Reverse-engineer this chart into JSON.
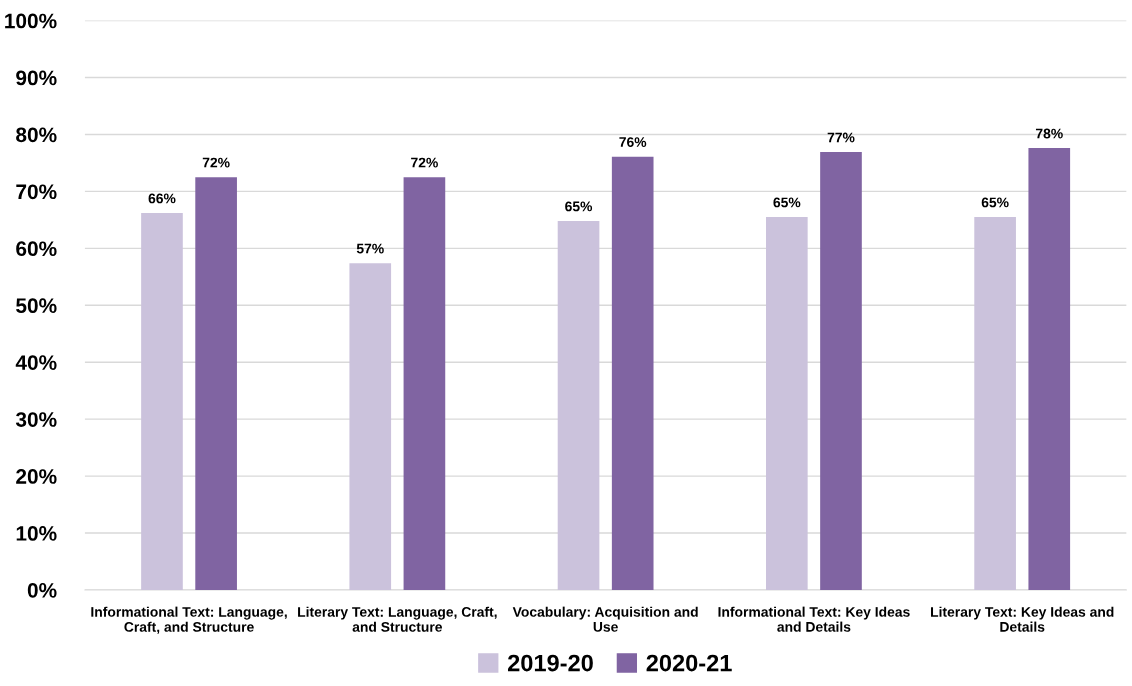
{
  "chart_data": {
    "type": "bar",
    "categories": [
      "Informational Text: Language,\nCraft, and Structure",
      "Literary Text: Language, Craft,\nand Structure",
      "Vocabulary: Acquisition and\nUse",
      "Informational Text: Key Ideas\nand Details",
      "Literary Text: Key Ideas and\nDetails"
    ],
    "series": [
      {
        "name": "2019-20",
        "color": "#cbc2dc",
        "values": [
          66.2,
          57.4,
          64.8,
          65.5,
          65.5
        ],
        "value_labels": [
          "66%",
          "57%",
          "65%",
          "65%",
          "65%"
        ]
      },
      {
        "name": "2020-21",
        "color": "#8064a2",
        "values": [
          72.5,
          72.5,
          76.1,
          76.9,
          77.6
        ],
        "value_labels": [
          "72%",
          "72%",
          "76%",
          "77%",
          "78%"
        ]
      }
    ],
    "ylim": [
      0,
      100
    ],
    "yticks": [
      {
        "value": 0,
        "label": "0%"
      },
      {
        "value": 10,
        "label": "10%"
      },
      {
        "value": 20,
        "label": "20%"
      },
      {
        "value": 30,
        "label": "30%"
      },
      {
        "value": 40,
        "label": "40%"
      },
      {
        "value": 50,
        "label": "50%"
      },
      {
        "value": 60,
        "label": "60%"
      },
      {
        "value": 70,
        "label": "70%"
      },
      {
        "value": 80,
        "label": "80%"
      },
      {
        "value": 90,
        "label": "90%"
      },
      {
        "value": 100,
        "label": "100%"
      }
    ],
    "grid": "y",
    "legend": "bottom"
  }
}
